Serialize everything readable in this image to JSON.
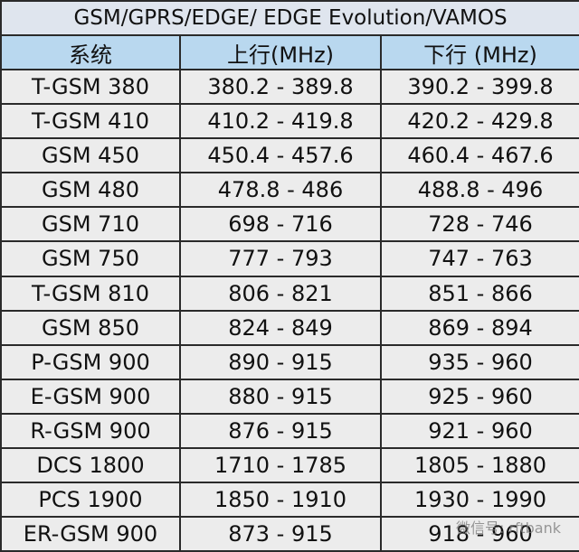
{
  "table": {
    "title": "GSM/GPRS/EDGE/ EDGE Evolution/VAMOS",
    "header": [
      "系统",
      "上行(MHz)",
      "下行 (MHz)"
    ],
    "rows": [
      [
        "T-GSM 380",
        "380.2 - 389.8",
        "390.2 - 399.8"
      ],
      [
        "T-GSM 410",
        "410.2 - 419.8",
        "420.2 - 429.8"
      ],
      [
        "GSM 450",
        "450.4 - 457.6",
        "460.4 - 467.6"
      ],
      [
        "GSM 480",
        "478.8 - 486",
        "488.8 - 496"
      ],
      [
        "GSM 710",
        "698 - 716",
        "728 - 746"
      ],
      [
        "GSM 750",
        "777 - 793",
        "747 - 763"
      ],
      [
        "T-GSM 810",
        "806 - 821",
        "851 - 866"
      ],
      [
        "GSM 850",
        "824 - 849",
        "869 - 894"
      ],
      [
        "P-GSM 900",
        "890 - 915",
        "935 - 960"
      ],
      [
        "E-GSM 900",
        "880 - 915",
        "925 - 960"
      ],
      [
        "R-GSM 900",
        "876 - 915",
        "921 - 960"
      ],
      [
        "DCS 1800",
        "1710 - 1785",
        "1805 - 1880"
      ],
      [
        "PCS 1900",
        "1850 - 1910",
        "1930 - 1990"
      ],
      [
        "ER-GSM 900",
        "873 - 915",
        "918 - 960"
      ]
    ]
  },
  "watermark": "微信号: rftbank"
}
